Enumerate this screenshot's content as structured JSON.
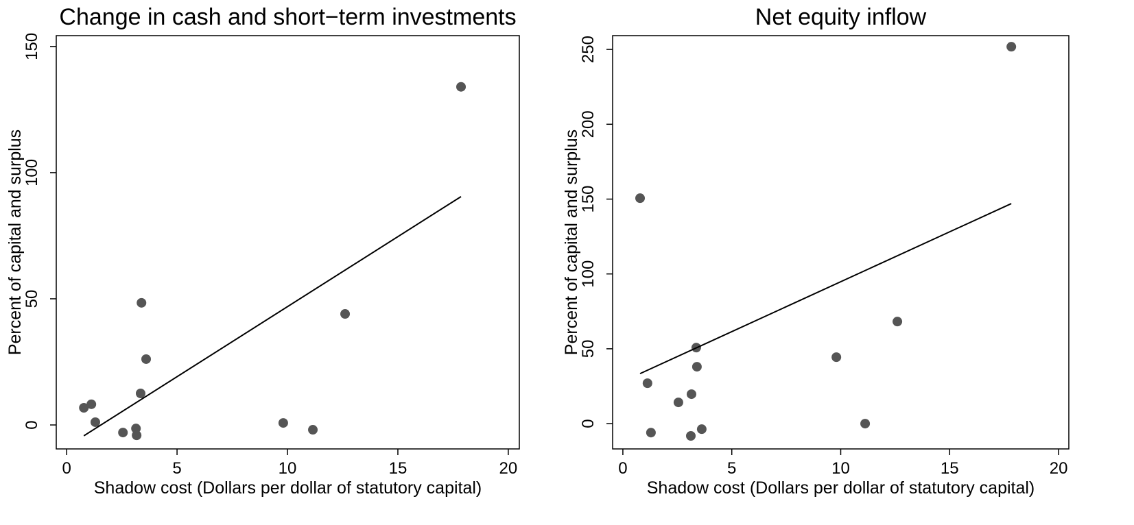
{
  "chart_data": [
    {
      "type": "scatter",
      "title": "Change in cash and short−term investments",
      "x_label": "Shadow cost (Dollars per dollar of statutory capital)",
      "y_label": "Percent of capital and surplus",
      "x": [
        0.78,
        1.12,
        1.3,
        2.55,
        3.14,
        3.17,
        3.39,
        3.35,
        3.6,
        9.81,
        11.15,
        12.61,
        17.86
      ],
      "values": [
        6.8,
        8.2,
        1.1,
        -3.0,
        -1.4,
        -4.1,
        48.4,
        12.5,
        26.1,
        0.8,
        -1.9,
        44.0,
        134.0
      ],
      "color": "#555555",
      "fit_line": {
        "x": [
          0.78,
          17.86
        ],
        "y": [
          -4.3,
          90.5
        ],
        "color": "#000000"
      },
      "xlim": [
        -0.47,
        20.5
      ],
      "ylim": [
        -9.5,
        154.3
      ],
      "xticks": [
        0,
        5,
        10,
        15,
        20
      ],
      "yticks": [
        0,
        50,
        100,
        150
      ]
    },
    {
      "type": "scatter",
      "title": "Net equity inflow",
      "x_label": "Shadow cost (Dollars per dollar of statutory capital)",
      "y_label": "Percent of capital and surplus",
      "x": [
        0.79,
        1.13,
        1.29,
        2.55,
        3.12,
        3.15,
        3.37,
        3.4,
        3.62,
        9.8,
        11.12,
        12.6,
        17.83
      ],
      "values": [
        150.6,
        27.0,
        -6.0,
        14.2,
        -8.2,
        19.7,
        50.8,
        38.0,
        -3.7,
        44.4,
        0.0,
        68.2,
        251.8
      ],
      "color": "#555555",
      "fit_line": {
        "x": [
          0.79,
          17.83
        ],
        "y": [
          33.4,
          147.0
        ],
        "color": "#000000"
      },
      "xlim": [
        -0.47,
        20.47
      ],
      "ylim": [
        -16.9,
        259.2
      ],
      "xticks": [
        0,
        5,
        10,
        15,
        20
      ],
      "yticks": [
        0,
        50,
        100,
        150,
        200,
        250
      ]
    }
  ]
}
